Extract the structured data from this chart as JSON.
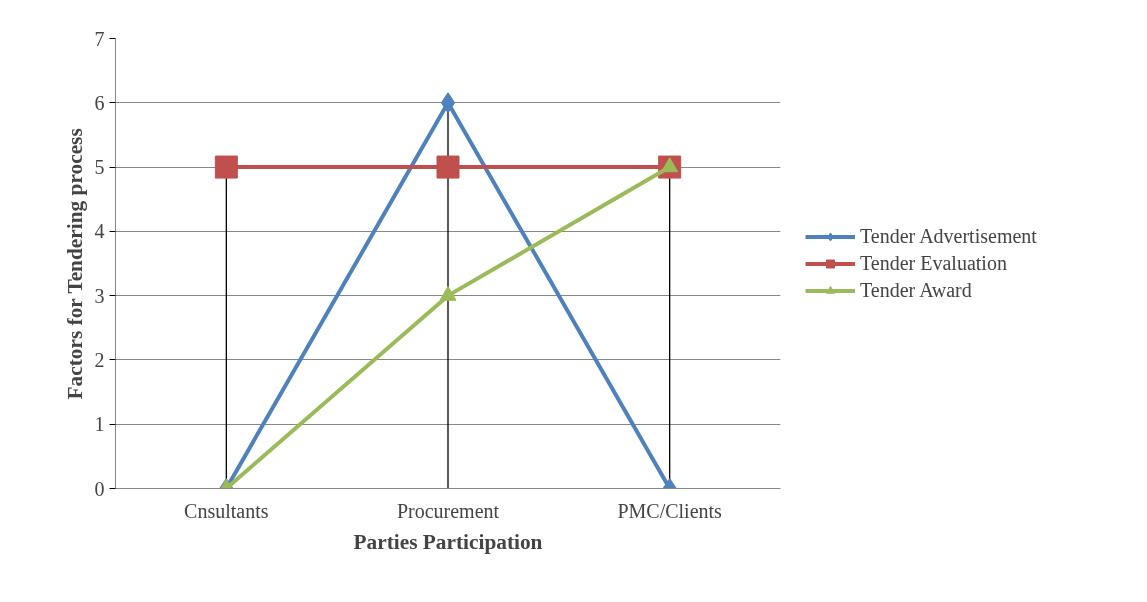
{
  "chart_data": {
    "type": "line",
    "xlabel": "Parties Participation",
    "ylabel": "Factors for Tendering process",
    "categories": [
      "Cnsultants",
      "Procurement",
      "PMC/Clients"
    ],
    "series": [
      {
        "name": "Tender Advertisement",
        "color": "#4f81bd",
        "values": [
          0,
          6,
          0
        ],
        "marker": "diamond"
      },
      {
        "name": "Tender Evaluation",
        "color": "#c0504d",
        "values": [
          5,
          5,
          5
        ],
        "marker": "square"
      },
      {
        "name": "Tender Award",
        "color": "#9bbb59",
        "values": [
          0,
          3,
          5
        ],
        "marker": "triangle"
      }
    ],
    "ylim": [
      0,
      7
    ],
    "yticks": [
      0,
      1,
      2,
      3,
      4,
      5,
      6,
      7
    ],
    "grid": "y",
    "legend": "right",
    "ref_lines": [
      {
        "axis": "x",
        "value": "Cnsultants",
        "color": "#000000"
      },
      {
        "axis": "x",
        "value": "Procurement",
        "color": "#000000"
      },
      {
        "axis": "x",
        "value": "PMC/Clients",
        "color": "#000000"
      }
    ]
  }
}
